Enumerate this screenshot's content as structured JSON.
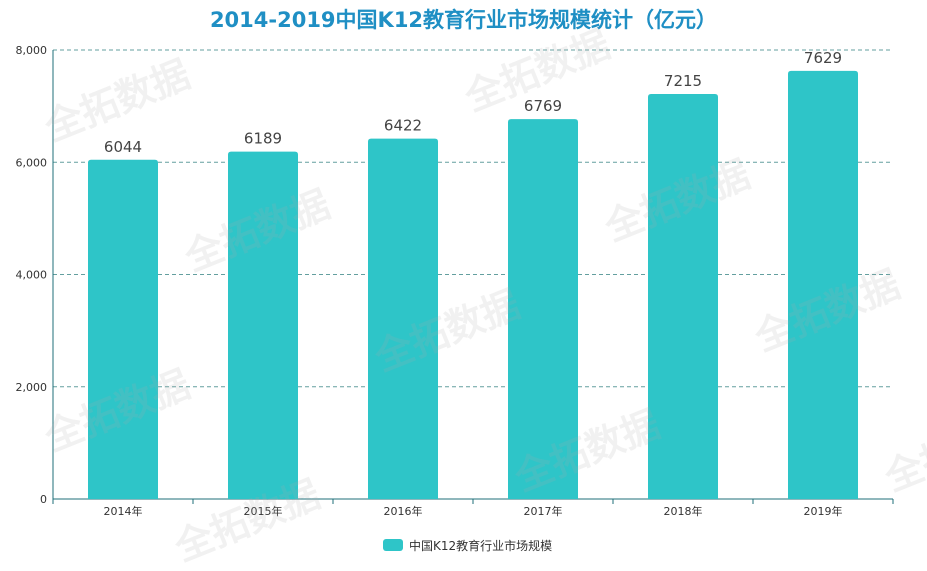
{
  "chart_data": {
    "type": "bar",
    "title": "2014-2019中国K12教育行业市场规模统计（亿元）",
    "categories": [
      "2014年",
      "2015年",
      "2016年",
      "2017年",
      "2018年",
      "2019年"
    ],
    "series": [
      {
        "name": "中国K12教育行业市场规模",
        "values": [
          6044,
          6189,
          6422,
          6769,
          7215,
          7629
        ]
      }
    ],
    "ylim": [
      0,
      8000
    ],
    "yticks": [
      "0",
      "2,000",
      "4,000",
      "6,000",
      "8,000"
    ],
    "ytick_values": [
      0,
      2000,
      4000,
      6000,
      8000
    ],
    "grid": true,
    "legend_position": "bottom",
    "bar_color": "#2ec5c8",
    "axis_color": "#1f6f7a",
    "grid_color": "#2f8080"
  },
  "watermark": {
    "text": "全拓数据"
  }
}
